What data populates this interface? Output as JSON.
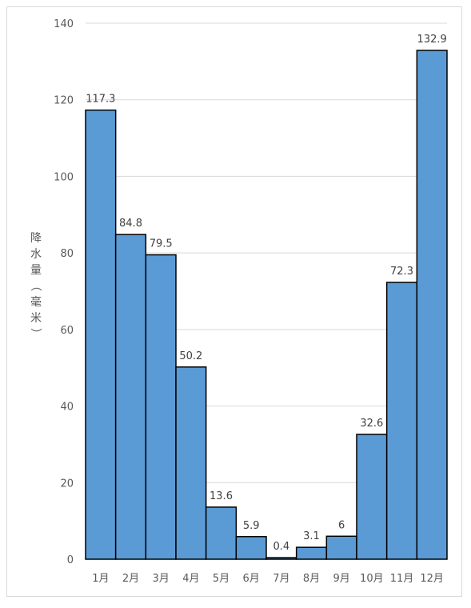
{
  "chart_data": {
    "type": "bar",
    "title": "",
    "xlabel": "",
    "ylabel": "降水量（毫米）",
    "categories": [
      "1月",
      "2月",
      "3月",
      "4月",
      "5月",
      "6月",
      "7月",
      "8月",
      "9月",
      "10月",
      "11月",
      "12月"
    ],
    "values": [
      117.3,
      84.8,
      79.5,
      50.2,
      13.6,
      5.9,
      0.4,
      3.1,
      6,
      32.6,
      72.3,
      132.9
    ],
    "value_labels": [
      "117.3",
      "84.8",
      "79.5",
      "50.2",
      "13.6",
      "5.9",
      "0.4",
      "3.1",
      "6",
      "32.6",
      "72.3",
      "132.9"
    ],
    "ylim": [
      0,
      140
    ],
    "yticks": [
      "0",
      "20",
      "40",
      "60",
      "80",
      "100",
      "120",
      "140"
    ],
    "grid": true,
    "legend": "none",
    "bar_color": "#5b9bd5",
    "bar_border_color": "#000000"
  }
}
